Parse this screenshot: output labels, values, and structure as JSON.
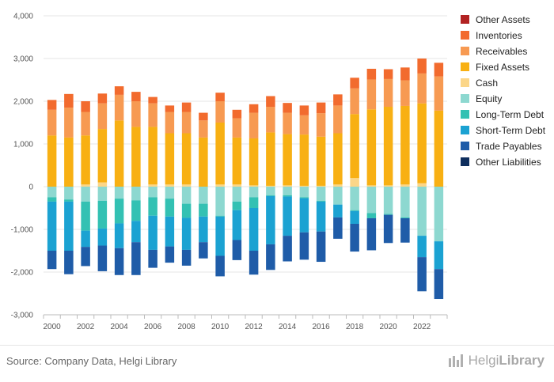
{
  "chart_data": {
    "type": "bar",
    "stacked": true,
    "categories": [
      2000,
      2001,
      2002,
      2003,
      2004,
      2005,
      2006,
      2007,
      2008,
      2009,
      2010,
      2011,
      2012,
      2013,
      2014,
      2015,
      2016,
      2017,
      2018,
      2019,
      2020,
      2021,
      2022,
      2023
    ],
    "x_tick_labels": [
      "2000",
      "2002",
      "2004",
      "2006",
      "2008",
      "2010",
      "2012",
      "2014",
      "2016",
      "2018",
      "2020",
      "2022"
    ],
    "y_tick_labels": [
      "4,000",
      "3,000",
      "2,000",
      "1,000",
      "0",
      "-1,000",
      "-2,000",
      "-3,000"
    ],
    "ylim": [
      -3000,
      4000
    ],
    "legend_position": "right",
    "assets": [
      {
        "name": "Other Assets",
        "color": "#b22222",
        "values": [
          0,
          0,
          0,
          0,
          0,
          0,
          0,
          0,
          0,
          0,
          0,
          0,
          0,
          0,
          0,
          0,
          0,
          0,
          0,
          0,
          0,
          0,
          0,
          0
        ]
      },
      {
        "name": "Inventories",
        "color": "#f26b2e",
        "values": [
          230,
          320,
          250,
          230,
          200,
          220,
          150,
          150,
          220,
          180,
          200,
          200,
          200,
          250,
          230,
          230,
          250,
          260,
          250,
          250,
          230,
          300,
          350,
          320
        ]
      },
      {
        "name": "Receivables",
        "color": "#f79a52",
        "values": [
          600,
          700,
          550,
          600,
          600,
          600,
          550,
          500,
          500,
          400,
          500,
          450,
          600,
          600,
          500,
          450,
          550,
          650,
          600,
          700,
          650,
          600,
          700,
          800
        ]
      },
      {
        "name": "Fixed Assets",
        "color": "#f8b013",
        "values": [
          1200,
          1150,
          1150,
          1250,
          1550,
          1400,
          1350,
          1200,
          1200,
          1150,
          1450,
          1100,
          1100,
          1250,
          1200,
          1200,
          1150,
          1200,
          1500,
          1780,
          1840,
          1840,
          1870,
          1780
        ]
      },
      {
        "name": "Cash",
        "color": "#fbd688",
        "values": [
          0,
          0,
          50,
          100,
          0,
          0,
          50,
          50,
          50,
          0,
          50,
          50,
          30,
          20,
          30,
          20,
          20,
          50,
          200,
          30,
          30,
          50,
          80,
          0
        ]
      }
    ],
    "liabilities": [
      {
        "name": "Equity",
        "color": "#8dd8d0",
        "values": [
          -250,
          -300,
          -350,
          -330,
          -280,
          -320,
          -250,
          -280,
          -400,
          -400,
          -680,
          -350,
          -250,
          -200,
          -200,
          -250,
          -330,
          -420,
          -550,
          -620,
          -640,
          -720,
          -1150,
          -1280
        ]
      },
      {
        "name": "Long-Term Debt",
        "color": "#33c1b3",
        "values": [
          -100,
          -50,
          -680,
          -650,
          -580,
          -480,
          -430,
          -420,
          -330,
          -300,
          -20,
          -200,
          -250,
          -20,
          -30,
          -20,
          -20,
          0,
          -20,
          -120,
          -20,
          -20,
          0,
          0
        ]
      },
      {
        "name": "Short-Term Debt",
        "color": "#1ba2d2",
        "values": [
          -1150,
          -1150,
          -380,
          -400,
          -580,
          -500,
          -800,
          -700,
          -750,
          -600,
          -920,
          -700,
          -1000,
          -1130,
          -920,
          -800,
          -700,
          -300,
          -300,
          0,
          0,
          0,
          -500,
          -650
        ]
      },
      {
        "name": "Trade Payables",
        "color": "#1f5ca8",
        "values": [
          -430,
          -550,
          -450,
          -600,
          -630,
          -770,
          -420,
          -380,
          -370,
          -380,
          -480,
          -470,
          -560,
          -600,
          -600,
          -640,
          -710,
          -500,
          -650,
          -750,
          -660,
          -570,
          -800,
          -700
        ]
      },
      {
        "name": "Other Liabilities",
        "color": "#0f2f5e",
        "values": [
          0,
          0,
          0,
          0,
          0,
          0,
          0,
          0,
          0,
          0,
          0,
          0,
          0,
          0,
          0,
          0,
          0,
          0,
          0,
          0,
          0,
          0,
          0,
          0
        ]
      }
    ]
  },
  "footer": {
    "source": "Source: Company Data, Helgi Library",
    "brand_light": "Helgi",
    "brand_bold": "Library"
  }
}
